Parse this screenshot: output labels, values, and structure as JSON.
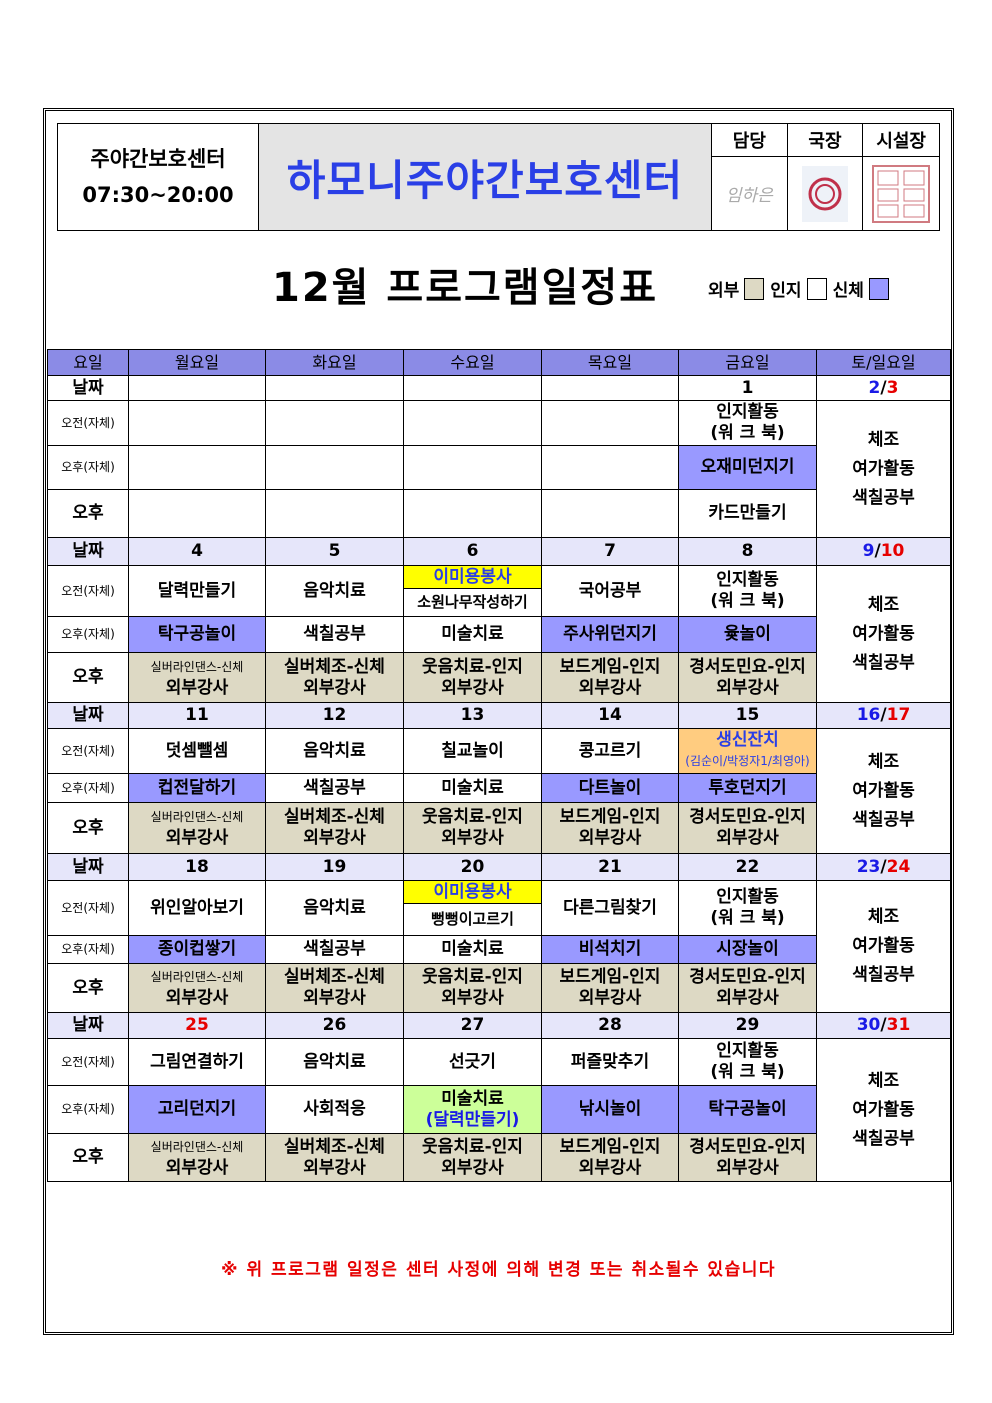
{
  "header": {
    "org_name": "주야간보호센터",
    "hours": "07:30~20:00",
    "center_title": "하모니주야간보호센터",
    "approvals": [
      {
        "role": "담당",
        "signature": "임하은"
      },
      {
        "role": "국장",
        "stamp": "red-round-seal"
      },
      {
        "role": "시설장",
        "stamp": "red-square-seal"
      }
    ]
  },
  "title": "12월 프로그램일정표",
  "legend": [
    {
      "label": "외부",
      "color": "#ddd9c4"
    },
    {
      "label": "인지",
      "color": "#ffffff"
    },
    {
      "label": "신체",
      "color": "#9999ff"
    }
  ],
  "colors": {
    "header": "#8b8be6",
    "date_row": "#e6e6fa",
    "physical": "#9999ff",
    "external": "#ddd9c4",
    "volunteer": "#ffff00",
    "event": "#ffcc80",
    "art": "#ccff99",
    "saturday": "#1a1ae6",
    "holiday": "#e60000"
  },
  "table": {
    "columns": [
      "요일",
      "월요일",
      "화요일",
      "수요일",
      "목요일",
      "금요일",
      "토/일요일"
    ],
    "row_labels": {
      "date": "날짜",
      "am": "오전(자체)",
      "pm": "오후(자체)",
      "aft": "오후"
    },
    "weekend_activities": [
      "체조",
      "여가활동",
      "색칠공부"
    ],
    "weeks": [
      {
        "dates": [
          "",
          "",
          "",
          "",
          "1"
        ],
        "sat": "2",
        "sun": "3",
        "am": [
          "",
          "",
          "",
          "",
          {
            "lines": [
              "인지활동",
              "(워 크 북)"
            ]
          }
        ],
        "pm": [
          "",
          "",
          "",
          "",
          {
            "lines": [
              "오재미던지기"
            ],
            "cat": "physical"
          }
        ],
        "aft": [
          "",
          "",
          "",
          "",
          {
            "lines": [
              "카드만들기"
            ]
          }
        ]
      },
      {
        "dates": [
          "4",
          "5",
          "6",
          "7",
          "8"
        ],
        "sat": "9",
        "sun": "10",
        "am": [
          {
            "lines": [
              "달력만들기"
            ]
          },
          {
            "lines": [
              "음악치료"
            ]
          },
          {
            "volunteer": "이미용봉사",
            "lines": [
              "소원나무작성하기"
            ]
          },
          {
            "lines": [
              "국어공부"
            ]
          },
          {
            "lines": [
              "인지활동",
              "(워 크 북)"
            ]
          }
        ],
        "pm": [
          {
            "lines": [
              "탁구공놀이"
            ],
            "cat": "physical"
          },
          {
            "lines": [
              "색칠공부"
            ]
          },
          {
            "lines": [
              "미술치료"
            ]
          },
          {
            "lines": [
              "주사위던지기"
            ],
            "cat": "physical"
          },
          {
            "lines": [
              "윷놀이"
            ],
            "cat": "physical"
          }
        ],
        "aft": [
          {
            "lines": [
              "실버라인댄스-신체",
              "외부강사"
            ],
            "cat": "external"
          },
          {
            "lines": [
              "실버체조-신체",
              "외부강사"
            ],
            "cat": "external"
          },
          {
            "lines": [
              "웃음치료-인지",
              "외부강사"
            ],
            "cat": "external"
          },
          {
            "lines": [
              "보드게임-인지",
              "외부강사"
            ],
            "cat": "external"
          },
          {
            "lines": [
              "경서도민요-인지",
              "외부강사"
            ],
            "cat": "external"
          }
        ]
      },
      {
        "dates": [
          "11",
          "12",
          "13",
          "14",
          "15"
        ],
        "sat": "16",
        "sun": "17",
        "am": [
          {
            "lines": [
              "덧셈뺄셈"
            ]
          },
          {
            "lines": [
              "음악치료"
            ]
          },
          {
            "lines": [
              "칠교놀이"
            ]
          },
          {
            "lines": [
              "콩고르기"
            ]
          },
          {
            "lines": [
              "생신잔치",
              "(김순이/박정자1/최영아)"
            ],
            "cat": "event"
          }
        ],
        "pm": [
          {
            "lines": [
              "컵전달하기"
            ],
            "cat": "physical"
          },
          {
            "lines": [
              "색칠공부"
            ]
          },
          {
            "lines": [
              "미술치료"
            ]
          },
          {
            "lines": [
              "다트놀이"
            ],
            "cat": "physical"
          },
          {
            "lines": [
              "투호던지기"
            ],
            "cat": "physical"
          }
        ],
        "aft": [
          {
            "lines": [
              "실버라인댄스-신체",
              "외부강사"
            ],
            "cat": "external"
          },
          {
            "lines": [
              "실버체조-신체",
              "외부강사"
            ],
            "cat": "external"
          },
          {
            "lines": [
              "웃음치료-인지",
              "외부강사"
            ],
            "cat": "external"
          },
          {
            "lines": [
              "보드게임-인지",
              "외부강사"
            ],
            "cat": "external"
          },
          {
            "lines": [
              "경서도민요-인지",
              "외부강사"
            ],
            "cat": "external"
          }
        ]
      },
      {
        "dates": [
          "18",
          "19",
          "20",
          "21",
          "22"
        ],
        "sat": "23",
        "sun": "24",
        "am": [
          {
            "lines": [
              "위인알아보기"
            ]
          },
          {
            "lines": [
              "음악치료"
            ]
          },
          {
            "volunteer": "이미용봉사",
            "lines": [
              "뻥뻥이고르기"
            ]
          },
          {
            "lines": [
              "다른그림찾기"
            ]
          },
          {
            "lines": [
              "인지활동",
              "(워 크 북)"
            ]
          }
        ],
        "pm": [
          {
            "lines": [
              "종이컵쌓기"
            ],
            "cat": "physical"
          },
          {
            "lines": [
              "색칠공부"
            ]
          },
          {
            "lines": [
              "미술치료"
            ]
          },
          {
            "lines": [
              "비석치기"
            ],
            "cat": "physical"
          },
          {
            "lines": [
              "시장놀이"
            ],
            "cat": "physical"
          }
        ],
        "aft": [
          {
            "lines": [
              "실버라인댄스-신체",
              "외부강사"
            ],
            "cat": "external"
          },
          {
            "lines": [
              "실버체조-신체",
              "외부강사"
            ],
            "cat": "external"
          },
          {
            "lines": [
              "웃음치료-인지",
              "외부강사"
            ],
            "cat": "external"
          },
          {
            "lines": [
              "보드게임-인지",
              "외부강사"
            ],
            "cat": "external"
          },
          {
            "lines": [
              "경서도민요-인지",
              "외부강사"
            ],
            "cat": "external"
          }
        ]
      },
      {
        "dates": [
          "25",
          "26",
          "27",
          "28",
          "29"
        ],
        "holiday_dates": [
          "25"
        ],
        "sat": "30",
        "sun": "31",
        "am": [
          {
            "lines": [
              "그림연결하기"
            ]
          },
          {
            "lines": [
              "음악치료"
            ]
          },
          {
            "lines": [
              "선긋기"
            ]
          },
          {
            "lines": [
              "퍼즐맞추기"
            ]
          },
          {
            "lines": [
              "인지활동",
              "(워 크 북)"
            ]
          }
        ],
        "pm": [
          {
            "lines": [
              "고리던지기"
            ],
            "cat": "physical"
          },
          {
            "lines": [
              "사회적응"
            ]
          },
          {
            "lines": [
              "미술치료",
              "(달력만들기)"
            ],
            "cat": "art"
          },
          {
            "lines": [
              "낚시놀이"
            ],
            "cat": "physical"
          },
          {
            "lines": [
              "탁구공놀이"
            ],
            "cat": "physical"
          }
        ],
        "aft": [
          {
            "lines": [
              "실버라인댄스-신체",
              "외부강사"
            ],
            "cat": "external"
          },
          {
            "lines": [
              "실버체조-신체",
              "외부강사"
            ],
            "cat": "external"
          },
          {
            "lines": [
              "웃음치료-인지",
              "외부강사"
            ],
            "cat": "external"
          },
          {
            "lines": [
              "보드게임-인지",
              "외부강사"
            ],
            "cat": "external"
          },
          {
            "lines": [
              "경서도민요-인지",
              "외부강사"
            ],
            "cat": "external"
          }
        ]
      }
    ]
  },
  "footer_note": "※ 위 프로그램 일정은 센터 사정에 의해 변경 또는 취소될수 있습니다"
}
